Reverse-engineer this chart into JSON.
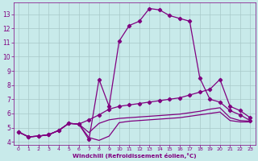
{
  "bg_color": "#c8eaea",
  "line_color": "#800080",
  "grid_color": "#a8c8c8",
  "xlabel": "Windchill (Refroidissement éolien,°C)",
  "xlabel_color": "#800080",
  "tick_color": "#800080",
  "xlim": [
    -0.5,
    23.5
  ],
  "ylim": [
    3.8,
    13.8
  ],
  "yticks": [
    4,
    5,
    6,
    7,
    8,
    9,
    10,
    11,
    12,
    13
  ],
  "xticks": [
    0,
    1,
    2,
    3,
    4,
    5,
    6,
    7,
    8,
    9,
    10,
    11,
    12,
    13,
    14,
    15,
    16,
    17,
    18,
    19,
    20,
    21,
    22,
    23
  ],
  "series1_x": [
    0,
    1,
    2,
    3,
    4,
    5,
    6,
    7,
    8,
    9,
    10,
    11,
    12,
    13,
    14,
    15,
    16,
    17,
    18,
    19,
    20,
    21,
    22,
    23
  ],
  "series1_y": [
    4.7,
    4.35,
    4.4,
    4.5,
    4.8,
    5.3,
    5.25,
    4.15,
    8.4,
    6.5,
    11.1,
    12.2,
    12.5,
    13.4,
    13.3,
    12.9,
    12.7,
    12.5,
    8.5,
    7.0,
    6.8,
    6.2,
    5.9,
    5.5
  ],
  "series2_x": [
    0,
    1,
    2,
    3,
    4,
    5,
    6,
    7,
    8,
    9,
    10,
    11,
    12,
    13,
    14,
    15,
    16,
    17,
    18,
    19,
    20,
    21,
    22,
    23
  ],
  "series2_y": [
    4.7,
    4.35,
    4.4,
    4.5,
    4.8,
    5.3,
    5.25,
    5.55,
    5.9,
    6.3,
    6.5,
    6.6,
    6.7,
    6.8,
    6.9,
    7.0,
    7.1,
    7.3,
    7.5,
    7.7,
    8.4,
    6.5,
    6.2,
    5.7
  ],
  "series3_x": [
    0,
    1,
    2,
    3,
    4,
    5,
    6,
    7,
    8,
    9,
    10,
    11,
    12,
    13,
    14,
    15,
    16,
    17,
    18,
    19,
    20,
    21,
    22,
    23
  ],
  "series3_y": [
    4.7,
    4.35,
    4.4,
    4.5,
    4.8,
    5.3,
    5.25,
    4.65,
    5.3,
    5.55,
    5.65,
    5.7,
    5.75,
    5.8,
    5.85,
    5.9,
    5.95,
    6.05,
    6.15,
    6.3,
    6.4,
    5.7,
    5.5,
    5.45
  ],
  "series4_x": [
    0,
    1,
    2,
    3,
    4,
    5,
    6,
    7,
    8,
    9,
    10,
    11,
    12,
    13,
    14,
    15,
    16,
    17,
    18,
    19,
    20,
    21,
    22,
    23
  ],
  "series4_y": [
    4.7,
    4.35,
    4.4,
    4.5,
    4.8,
    5.3,
    5.25,
    4.3,
    4.1,
    4.4,
    5.35,
    5.45,
    5.5,
    5.55,
    5.6,
    5.65,
    5.7,
    5.8,
    5.9,
    6.0,
    6.1,
    5.5,
    5.4,
    5.4
  ]
}
